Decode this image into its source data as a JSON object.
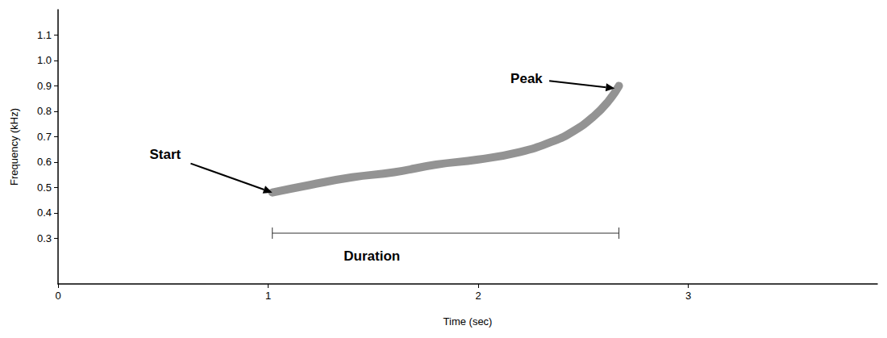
{
  "chart_data": {
    "type": "line",
    "x_label": "Time (sec)",
    "y_label": "Frequency (kHz)",
    "xlim": [
      0,
      3.9
    ],
    "xticks": [
      0,
      1,
      2,
      3
    ],
    "ylim": [
      0.12,
      1.2
    ],
    "yticks": [
      0.3,
      0.4,
      0.5,
      0.6,
      0.7,
      0.8,
      {
        "value": 0.9,
        "label": "0.9"
      },
      {
        "value": 1,
        "label": "1.0"
      },
      {
        "value": 1.1,
        "label": "1.1"
      }
    ],
    "grid": false,
    "color": "#808080",
    "x": [
      1.02,
      1.2,
      1.4,
      1.6,
      1.8,
      2.0,
      2.2,
      2.35,
      2.45,
      2.55,
      2.62,
      2.67
    ],
    "values": [
      0.48,
      0.51,
      0.54,
      0.56,
      0.59,
      0.61,
      0.64,
      0.68,
      0.72,
      0.78,
      0.84,
      0.9
    ],
    "annotations": [
      {
        "text": "Start",
        "x": 0.51,
        "y": 0.63,
        "target": [
          1.02,
          0.48
        ]
      },
      {
        "text": "Peak",
        "x": 2.23,
        "y": 0.93,
        "target": [
          2.65,
          0.89
        ]
      }
    ],
    "duration": {
      "label": "Duration",
      "start": 1.02,
      "end": 2.67,
      "y": 0.32,
      "label_x": 1.36,
      "label_y": 0.23
    }
  }
}
